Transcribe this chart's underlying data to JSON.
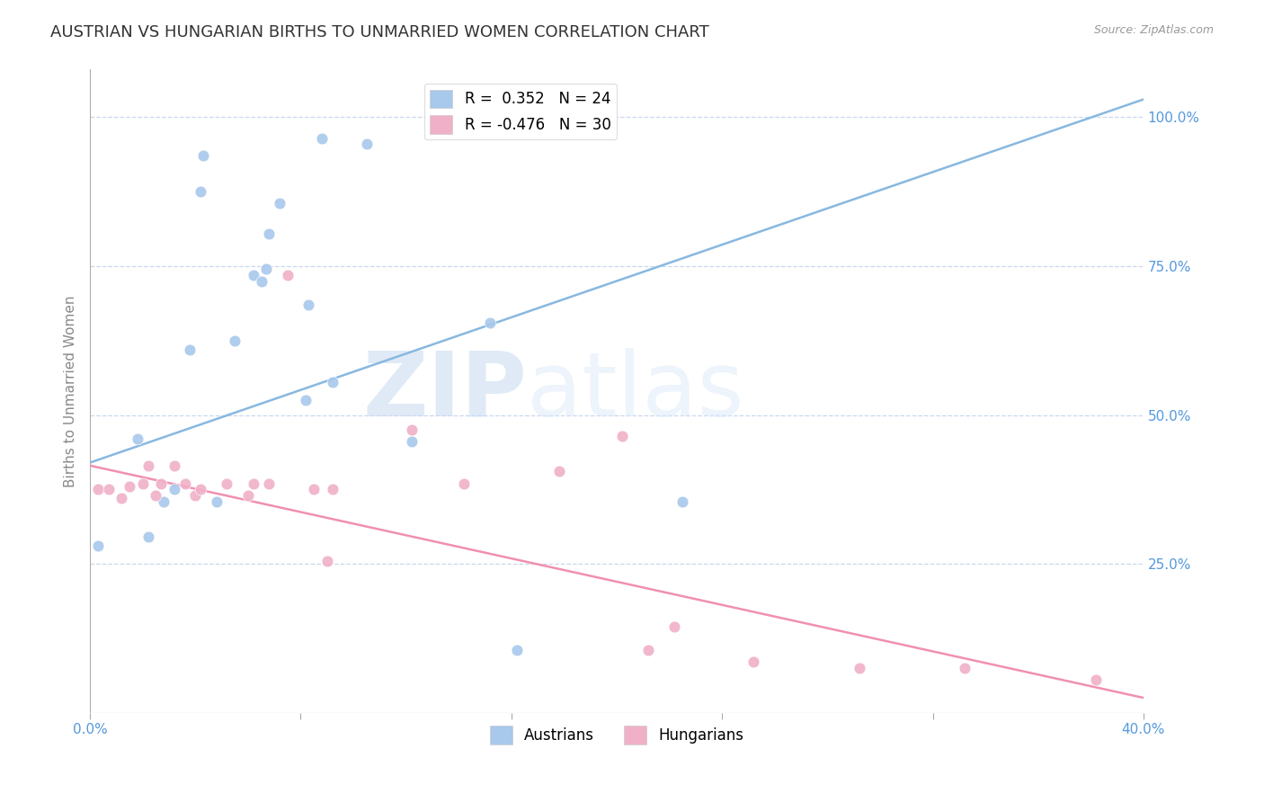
{
  "title": "AUSTRIAN VS HUNGARIAN BIRTHS TO UNMARRIED WOMEN CORRELATION CHART",
  "source": "Source: ZipAtlas.com",
  "ylabel": "Births to Unmarried Women",
  "xlim": [
    0.0,
    0.4
  ],
  "ylim": [
    0.0,
    1.08
  ],
  "xticks": [
    0.0,
    0.08,
    0.16,
    0.24,
    0.32,
    0.4
  ],
  "xticklabels": [
    "0.0%",
    "",
    "",
    "",
    "",
    "40.0%"
  ],
  "yticks_right": [
    0.25,
    0.5,
    0.75,
    1.0
  ],
  "ytick_labels_right": [
    "25.0%",
    "50.0%",
    "75.0%",
    "100.0%"
  ],
  "legend_r1": "R =  0.352   N = 24",
  "legend_r2": "R = -0.476   N = 30",
  "watermark_zip": "ZIP",
  "watermark_atlas": "atlas",
  "blue_color": "#a8c8ec",
  "pink_color": "#f0b0c8",
  "line_blue": "#88b8e0",
  "line_pink": "#f090b0",
  "austrians_x": [
    0.003,
    0.018,
    0.022,
    0.028,
    0.032,
    0.038,
    0.042,
    0.043,
    0.048,
    0.055,
    0.062,
    0.065,
    0.067,
    0.068,
    0.072,
    0.082,
    0.083,
    0.088,
    0.092,
    0.105,
    0.122,
    0.152,
    0.162,
    0.225
  ],
  "austrians_y": [
    0.28,
    0.46,
    0.295,
    0.355,
    0.375,
    0.61,
    0.875,
    0.935,
    0.355,
    0.625,
    0.735,
    0.725,
    0.745,
    0.805,
    0.855,
    0.525,
    0.685,
    0.965,
    0.555,
    0.955,
    0.455,
    0.655,
    0.105,
    0.355
  ],
  "hungarians_x": [
    0.003,
    0.007,
    0.012,
    0.015,
    0.02,
    0.022,
    0.025,
    0.027,
    0.032,
    0.036,
    0.04,
    0.042,
    0.052,
    0.06,
    0.062,
    0.068,
    0.075,
    0.085,
    0.09,
    0.092,
    0.122,
    0.142,
    0.178,
    0.202,
    0.212,
    0.222,
    0.252,
    0.292,
    0.332,
    0.382
  ],
  "hungarians_y": [
    0.375,
    0.375,
    0.36,
    0.38,
    0.385,
    0.415,
    0.365,
    0.385,
    0.415,
    0.385,
    0.365,
    0.375,
    0.385,
    0.365,
    0.385,
    0.385,
    0.735,
    0.375,
    0.255,
    0.375,
    0.475,
    0.385,
    0.405,
    0.465,
    0.105,
    0.145,
    0.085,
    0.075,
    0.075,
    0.055
  ],
  "blue_line_x": [
    0.0,
    0.4
  ],
  "blue_line_y": [
    0.42,
    1.03
  ],
  "pink_line_x": [
    0.0,
    0.4
  ],
  "pink_line_y": [
    0.415,
    0.025
  ],
  "title_fontsize": 13,
  "axis_label_fontsize": 11,
  "tick_fontsize": 11,
  "legend_fontsize": 12,
  "right_tick_color": "#5599dd",
  "grid_color": "#c8d8ee",
  "marker_size": 85,
  "marker_edge_width": 0.5
}
